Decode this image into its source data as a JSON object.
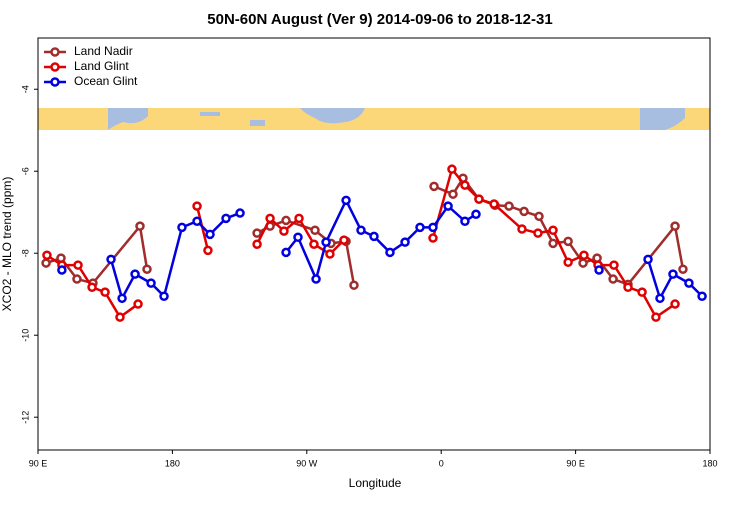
{
  "chart_data": {
    "type": "line",
    "title": "50N-60N August (Ver 9)   2014-09-06 to 2018-12-31",
    "x_label": "Longitude",
    "y_label": "XCO2 - MLO trend (ppm)",
    "xlim": [
      90,
      540
    ],
    "ylim": [
      -12.8,
      -2.75
    ],
    "xticks": [
      {
        "value": 90,
        "label": "90 E"
      },
      {
        "value": 180,
        "label": "180"
      },
      {
        "value": 270,
        "label": "90 W"
      },
      {
        "value": 360,
        "label": "0"
      },
      {
        "value": 450,
        "label": "90 E"
      },
      {
        "value": 540,
        "label": "180"
      }
    ],
    "yticks": [
      -4,
      -6,
      -8,
      -10,
      -12
    ],
    "legend": "top-left",
    "series": [
      {
        "name": "Land Nadir",
        "color": "#a02c2c",
        "x": [
          95.4,
          105.4,
          116.1,
          126.8,
          158.3,
          163.0,
          null,
          236.7,
          245.4,
          256.1,
          275.5,
          286.2,
          296.3,
          301.6,
          null,
          355.2,
          367.9,
          374.6,
          385.3,
          396.0,
          405.4,
          415.5,
          425.5,
          434.9,
          445.0,
          455.0,
          464.4,
          475.1,
          485.1,
          516.6,
          521.9
        ],
        "values": [
          -8.24,
          -8.12,
          -8.63,
          -8.73,
          -7.34,
          -8.39,
          null,
          -7.51,
          -7.34,
          -7.2,
          -7.44,
          -7.76,
          -7.71,
          -8.78,
          null,
          -6.37,
          -6.56,
          -6.17,
          -6.68,
          -6.83,
          -6.85,
          -6.98,
          -7.1,
          -7.76,
          -7.71,
          -8.24,
          -8.12,
          -8.63,
          -8.76,
          -7.34,
          -8.39
        ]
      },
      {
        "name": "Land Glint",
        "color": "#e00000",
        "x": [
          96.0,
          106.0,
          116.8,
          126.2,
          134.9,
          144.9,
          157.0,
          null,
          196.5,
          203.8,
          null,
          236.7,
          245.4,
          254.7,
          264.8,
          274.8,
          285.5,
          294.9,
          null,
          354.5,
          367.2,
          375.9,
          385.3,
          395.4,
          414.1,
          424.8,
          434.9,
          445.0,
          455.6,
          465.0,
          475.7,
          485.1,
          494.5,
          503.8,
          516.6
        ],
        "values": [
          -8.05,
          -8.29,
          -8.29,
          -8.83,
          -8.95,
          -9.56,
          -9.24,
          null,
          -6.85,
          -7.93,
          null,
          -7.78,
          -7.15,
          -7.46,
          -7.15,
          -7.78,
          -8.02,
          -7.68,
          null,
          -7.63,
          -5.95,
          -6.34,
          -6.68,
          -6.8,
          -7.41,
          -7.51,
          -7.44,
          -8.22,
          -8.05,
          -8.29,
          -8.29,
          -8.83,
          -8.95,
          -9.56,
          -9.24
        ]
      },
      {
        "name": "Ocean Glint",
        "color": "#0000e0",
        "x": [
          106.0,
          null,
          138.9,
          146.3,
          155.0,
          165.7,
          174.4,
          186.4,
          196.5,
          205.2,
          215.9,
          225.3,
          null,
          256.1,
          264.1,
          276.2,
          282.9,
          296.3,
          306.3,
          315.0,
          325.7,
          335.8,
          345.8,
          354.5,
          364.6,
          375.9,
          383.3,
          null,
          465.7,
          null,
          498.5,
          506.5,
          515.2,
          525.9,
          534.7
        ],
        "values": [
          -8.41,
          null,
          -8.15,
          -9.1,
          -8.51,
          -8.73,
          -9.05,
          -7.37,
          -7.22,
          -7.54,
          -7.15,
          -7.02,
          null,
          -7.98,
          -7.61,
          -8.63,
          -7.73,
          -6.71,
          -7.44,
          -7.59,
          -7.98,
          -7.73,
          -7.37,
          -7.37,
          -6.85,
          -7.22,
          -7.05,
          null,
          -8.41,
          null,
          -8.15,
          -9.1,
          -8.51,
          -8.73,
          -9.05
        ]
      }
    ]
  }
}
